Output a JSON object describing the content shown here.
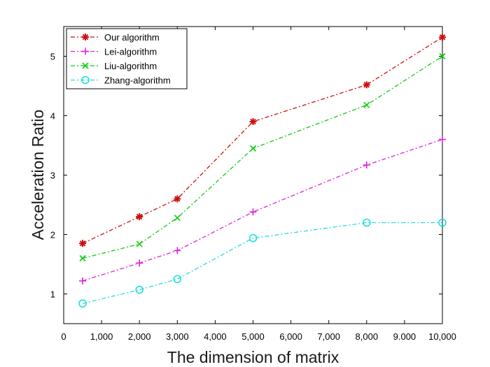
{
  "chart_data": {
    "type": "line",
    "title": "",
    "xlabel": "The dimension of matrix",
    "ylabel": "Acceleration Ratio",
    "x": [
      500,
      2000,
      3000,
      5000,
      8000,
      10000
    ],
    "xlim": [
      0,
      10000
    ],
    "ylim": [
      0.5,
      5.5
    ],
    "x_ticks": [
      0,
      1000,
      2000,
      3000,
      4000,
      5000,
      6000,
      7000,
      8000,
      9000,
      10000
    ],
    "x_tick_labels": [
      "0",
      "1,000",
      "2,000",
      "3,000",
      "4,000",
      "5,000",
      "6,000",
      "7,000",
      "8,000",
      "9.000",
      "10,000"
    ],
    "y_ticks": [
      1,
      2,
      3,
      4,
      5
    ],
    "y_tick_labels": [
      "1",
      "2",
      "3",
      "4",
      "5"
    ],
    "grid": false,
    "legend_position": "top-left",
    "series": [
      {
        "name": "Our algorithm",
        "values": [
          1.85,
          2.3,
          2.6,
          3.9,
          4.52,
          5.32
        ],
        "color": "#cc1111",
        "marker": "asterisk"
      },
      {
        "name": "Lei-algorithm",
        "values": [
          1.22,
          1.52,
          1.73,
          2.38,
          3.17,
          3.6
        ],
        "color": "#dd22dd",
        "marker": "plus"
      },
      {
        "name": "Liu-algorithm",
        "values": [
          1.6,
          1.84,
          2.28,
          3.45,
          4.18,
          5.0
        ],
        "color": "#11cc11",
        "marker": "cross"
      },
      {
        "name": "Zhang-algorithm",
        "values": [
          0.84,
          1.07,
          1.25,
          1.94,
          2.2,
          2.2
        ],
        "color": "#22dddd",
        "marker": "circle"
      }
    ]
  }
}
